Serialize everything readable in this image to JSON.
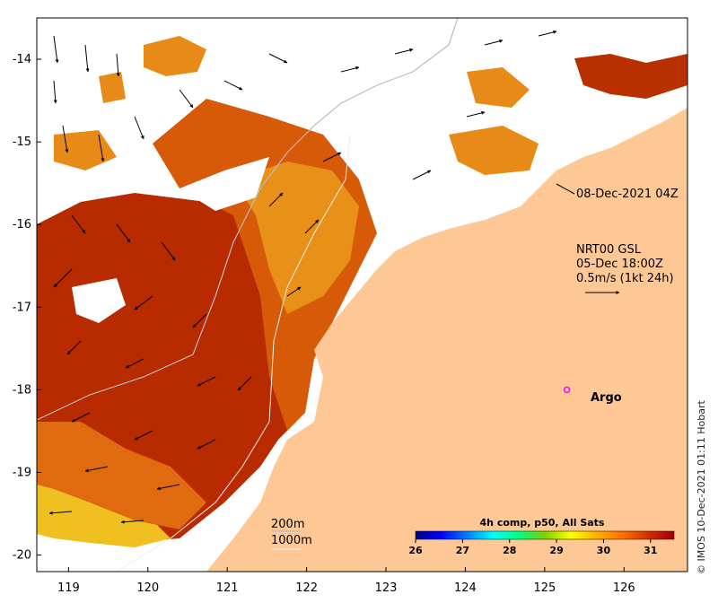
{
  "map": {
    "x_ticks": [
      "119",
      "120",
      "121",
      "122",
      "123",
      "124",
      "125",
      "126"
    ],
    "y_ticks": [
      "-14",
      "-15",
      "-16",
      "-17",
      "-18",
      "-19",
      "-20"
    ],
    "lon_range": [
      118.6,
      126.8
    ],
    "lat_range": [
      -20.2,
      -13.5
    ]
  },
  "labels": {
    "timestamp": "08-Dec-2021 04Z",
    "current_model": "NRT00 GSL",
    "current_time": "05-Dec 18:00Z",
    "current_scale": "0.5m/s (1kt 24h)",
    "argo": "Argo",
    "isobath_200": "200m",
    "isobath_1000": "1000m",
    "credit": "© IMOS 10-Dec-2021 01:11 Hobart"
  },
  "colorbar": {
    "title": "4h comp, p50, All Sats",
    "ticks": [
      "26",
      "27",
      "28",
      "29",
      "30",
      "31"
    ],
    "range": [
      26,
      31.5
    ],
    "stops": [
      "#00007f",
      "#0000ff",
      "#007fff",
      "#00ffff",
      "#00ff7f",
      "#7fd000",
      "#ffff00",
      "#ffb000",
      "#ff7000",
      "#d03000",
      "#a00000"
    ]
  },
  "colors": {
    "land": "#fdc896",
    "hot": "#b82a00",
    "warm": "#e67a10",
    "mid": "#f0a020",
    "cool": "#f5e020",
    "cloud": "#ffffff",
    "argo_marker": "#ff00ff",
    "arrow": "#000000"
  },
  "argo_position": {
    "lon": 125.28,
    "lat": -18.0
  }
}
